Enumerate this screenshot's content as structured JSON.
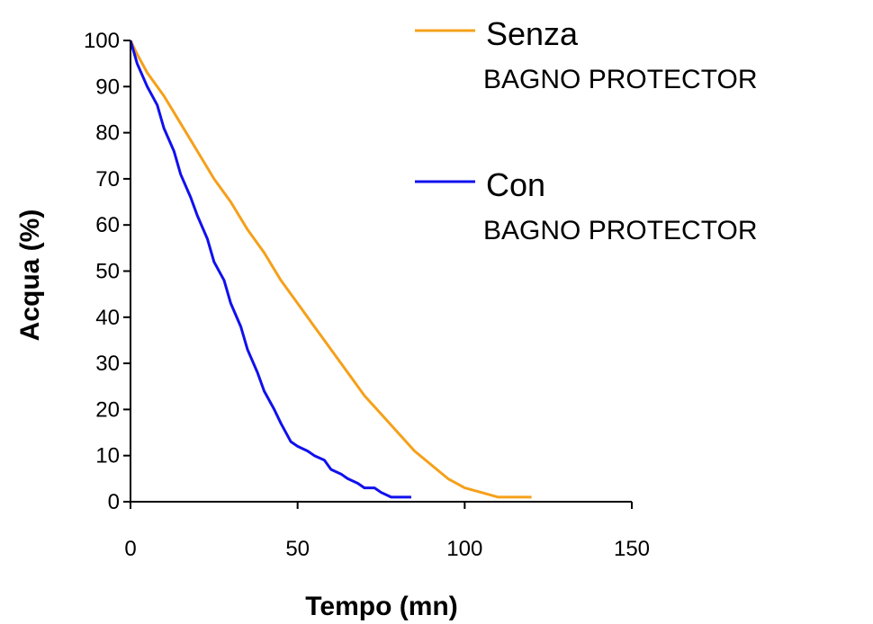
{
  "chart_data": {
    "type": "line",
    "title": "",
    "xlabel": "Tempo (mn)",
    "ylabel": "Acqua (%)",
    "xlim": [
      0,
      150
    ],
    "ylim": [
      0,
      100
    ],
    "xticks": [
      0,
      50,
      100,
      150
    ],
    "yticks": [
      0,
      10,
      20,
      30,
      40,
      50,
      60,
      70,
      80,
      90,
      100
    ],
    "grid": false,
    "legend_position": "top-right",
    "series": [
      {
        "name": "Senza",
        "name_sub": "BAGNO PROTECTOR",
        "color": "#f5a01a",
        "x": [
          0,
          2,
          5,
          10,
          15,
          20,
          25,
          30,
          35,
          40,
          45,
          50,
          55,
          60,
          65,
          70,
          75,
          80,
          85,
          90,
          95,
          100,
          105,
          110,
          112,
          115,
          120
        ],
        "y": [
          100,
          97,
          93,
          88,
          82,
          76,
          70,
          65,
          59,
          54,
          48,
          43,
          38,
          33,
          28,
          23,
          19,
          15,
          11,
          8,
          5,
          3,
          2,
          1,
          1,
          1,
          1
        ]
      },
      {
        "name": "Con",
        "name_sub": "BAGNO PROTECTOR",
        "color": "#1010ee",
        "x": [
          0,
          2,
          5,
          8,
          10,
          13,
          15,
          18,
          20,
          23,
          25,
          28,
          30,
          33,
          35,
          38,
          40,
          43,
          45,
          48,
          50,
          53,
          55,
          58,
          60,
          63,
          65,
          68,
          70,
          73,
          75,
          78,
          80,
          84
        ],
        "y": [
          100,
          95,
          90,
          86,
          81,
          76,
          71,
          66,
          62,
          57,
          52,
          48,
          43,
          38,
          33,
          28,
          24,
          20,
          17,
          13,
          12,
          11,
          10,
          9,
          7,
          6,
          5,
          4,
          3,
          3,
          2,
          1,
          1,
          1
        ]
      }
    ]
  }
}
